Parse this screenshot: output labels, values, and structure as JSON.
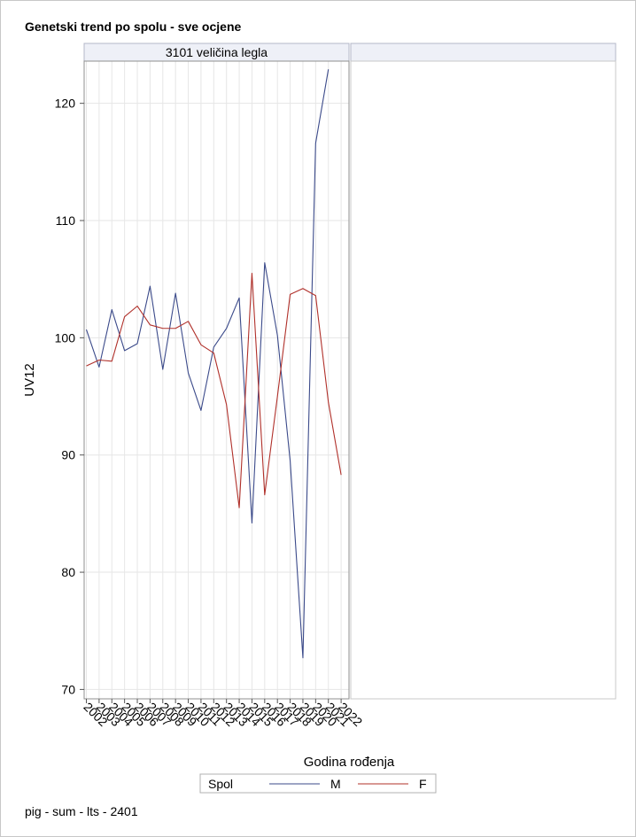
{
  "title": "Genetski trend po spolu - sve ocjene",
  "footnote": "pig - sum - lts - 2401",
  "colors": {
    "M": "#3b4a8a",
    "F": "#b0302a",
    "grid": "#e6e6e6",
    "frame": "#8f8f8f",
    "panel_header_bg": "#eef0f7"
  },
  "chart_data": {
    "type": "line",
    "title": "Genetski trend po spolu - sve ocjene",
    "panel_label": "3101 veličina legla",
    "xlabel": "Godina rođenja",
    "ylabel": "UV12",
    "ylim": [
      69.2,
      123.6
    ],
    "yticks": [
      70,
      80,
      90,
      100,
      110,
      120
    ],
    "grid": true,
    "legend": {
      "title": "Spol",
      "placement": "bottom-center"
    },
    "categories": [
      "2002",
      "2003",
      "2004",
      "2005",
      "2006",
      "2007",
      "2008",
      "2009",
      "2010",
      "2011",
      "2012",
      "2013",
      "2014",
      "2015",
      "2016",
      "2017",
      "2018",
      "2019",
      "2020",
      "2021",
      "2022"
    ],
    "series": [
      {
        "name": "M",
        "values": [
          100.7,
          97.5,
          102.4,
          98.9,
          99.5,
          104.4,
          97.3,
          103.8,
          97.0,
          93.8,
          99.2,
          100.8,
          103.4,
          84.2,
          106.4,
          100.2,
          89.5,
          72.7,
          116.6,
          122.9,
          null
        ]
      },
      {
        "name": "F",
        "values": [
          97.6,
          98.1,
          98.0,
          101.8,
          102.7,
          101.1,
          100.8,
          100.8,
          101.4,
          99.4,
          98.7,
          94.3,
          85.5,
          105.5,
          86.6,
          95.0,
          103.7,
          104.2,
          103.6,
          94.5,
          88.3
        ]
      }
    ]
  }
}
